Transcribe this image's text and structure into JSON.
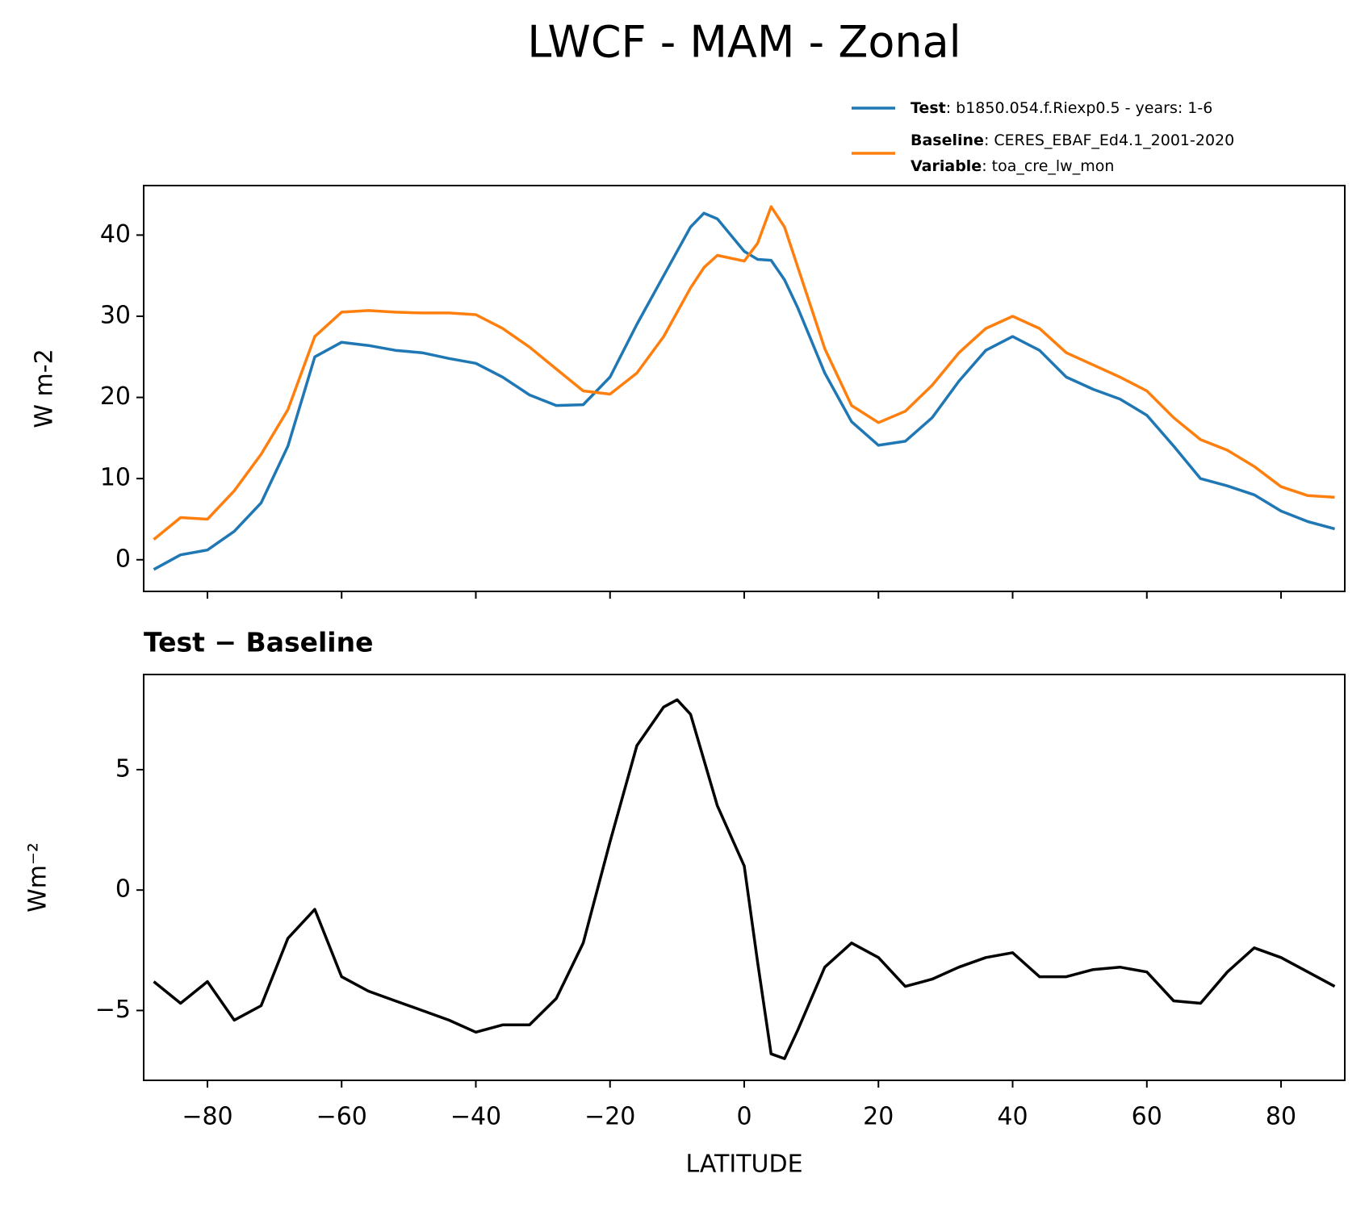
{
  "title": "LWCF - MAM - Zonal",
  "chart_data": [
    {
      "type": "line",
      "ylabel": "W m-2",
      "x": [
        -88,
        -84,
        -80,
        -76,
        -72,
        -68,
        -64,
        -60,
        -56,
        -52,
        -48,
        -44,
        -40,
        -36,
        -32,
        -28,
        -24,
        -20,
        -16,
        -12,
        -8,
        -6,
        -4,
        0,
        2,
        4,
        6,
        8,
        12,
        16,
        20,
        24,
        28,
        32,
        36,
        40,
        44,
        48,
        52,
        56,
        60,
        64,
        68,
        72,
        76,
        80,
        84,
        88
      ],
      "series": [
        {
          "name": "Test",
          "label": ": b1850.054.f.Riexp0.5 - years: 1-6",
          "color": "#1f77b4",
          "values": [
            -1.2,
            0.6,
            1.2,
            3.5,
            7,
            14,
            25,
            26.8,
            26.4,
            25.8,
            25.5,
            24.8,
            24.2,
            22.5,
            20.3,
            19,
            19.1,
            22.5,
            29,
            35,
            41,
            42.7,
            42,
            38,
            37,
            36.9,
            34.5,
            31,
            23,
            17,
            14.1,
            14.6,
            17.5,
            22,
            25.8,
            27.5,
            25.8,
            22.5,
            21,
            19.8,
            17.8,
            14,
            10,
            9.1,
            8,
            6,
            4.7,
            3.8
          ]
        },
        {
          "name": "Baseline",
          "label": ": CERES_EBAF_Ed4.1_2001-2020",
          "color": "#ff7f0e",
          "extra_name": "Variable",
          "extra_label": ": toa_cre_lw_mon",
          "values": [
            2.5,
            5.2,
            5,
            8.5,
            13,
            18.5,
            27.5,
            30.5,
            30.7,
            30.5,
            30.4,
            30.4,
            30.2,
            28.5,
            26.2,
            23.5,
            20.8,
            20.4,
            23,
            27.5,
            33.5,
            36,
            37.5,
            36.8,
            39,
            43.5,
            41,
            36,
            26,
            19,
            16.9,
            18.3,
            21.5,
            25.5,
            28.5,
            30,
            28.5,
            25.5,
            24,
            22.5,
            20.8,
            17.5,
            14.8,
            13.5,
            11.5,
            9,
            7.9,
            7.7
          ]
        }
      ],
      "xlim": [
        -89.5,
        89.5
      ],
      "ylim": [
        -3.9,
        46.1
      ],
      "xticks": [
        -80,
        -60,
        -40,
        -20,
        0,
        20,
        40,
        60,
        80
      ],
      "yticks": [
        0,
        10,
        20,
        30,
        40
      ]
    },
    {
      "type": "line",
      "title": "Test − Baseline",
      "xlabel": "LATITUDE",
      "ylabel": "Wm⁻²",
      "x": [
        -88,
        -84,
        -80,
        -76,
        -72,
        -68,
        -64,
        -60,
        -56,
        -52,
        -48,
        -44,
        -40,
        -36,
        -32,
        -28,
        -24,
        -20,
        -16,
        -12,
        -10,
        -8,
        -4,
        0,
        2,
        4,
        6,
        8,
        12,
        16,
        20,
        24,
        28,
        32,
        36,
        40,
        44,
        48,
        52,
        56,
        60,
        64,
        68,
        72,
        76,
        80,
        84,
        88
      ],
      "series": [
        {
          "color": "#000000",
          "values": [
            -3.8,
            -4.7,
            -3.8,
            -5.4,
            -4.8,
            -2,
            -0.8,
            -3.6,
            -4.2,
            -4.6,
            -5,
            -5.4,
            -5.9,
            -5.6,
            -5.6,
            -4.5,
            -2.2,
            2,
            6,
            7.6,
            7.9,
            7.3,
            3.5,
            1,
            -3,
            -6.8,
            -7,
            -5.8,
            -3.2,
            -2.2,
            -2.8,
            -4,
            -3.7,
            -3.2,
            -2.8,
            -2.6,
            -3.6,
            -3.6,
            -3.3,
            -3.2,
            -3.4,
            -4.6,
            -4.7,
            -3.4,
            -2.4,
            -2.8,
            -3.4,
            -4
          ]
        }
      ],
      "xlim": [
        -89.5,
        89.5
      ],
      "ylim": [
        -7.9,
        8.95
      ],
      "xticks": [
        {
          "value": -80,
          "label": "−80"
        },
        {
          "value": -60,
          "label": "−60"
        },
        {
          "value": -40,
          "label": "−40"
        },
        {
          "value": -20,
          "label": "−20"
        },
        0,
        20,
        40,
        60,
        80
      ],
      "yticks": [
        {
          "value": -5,
          "label": "−5"
        },
        0,
        5
      ]
    }
  ]
}
